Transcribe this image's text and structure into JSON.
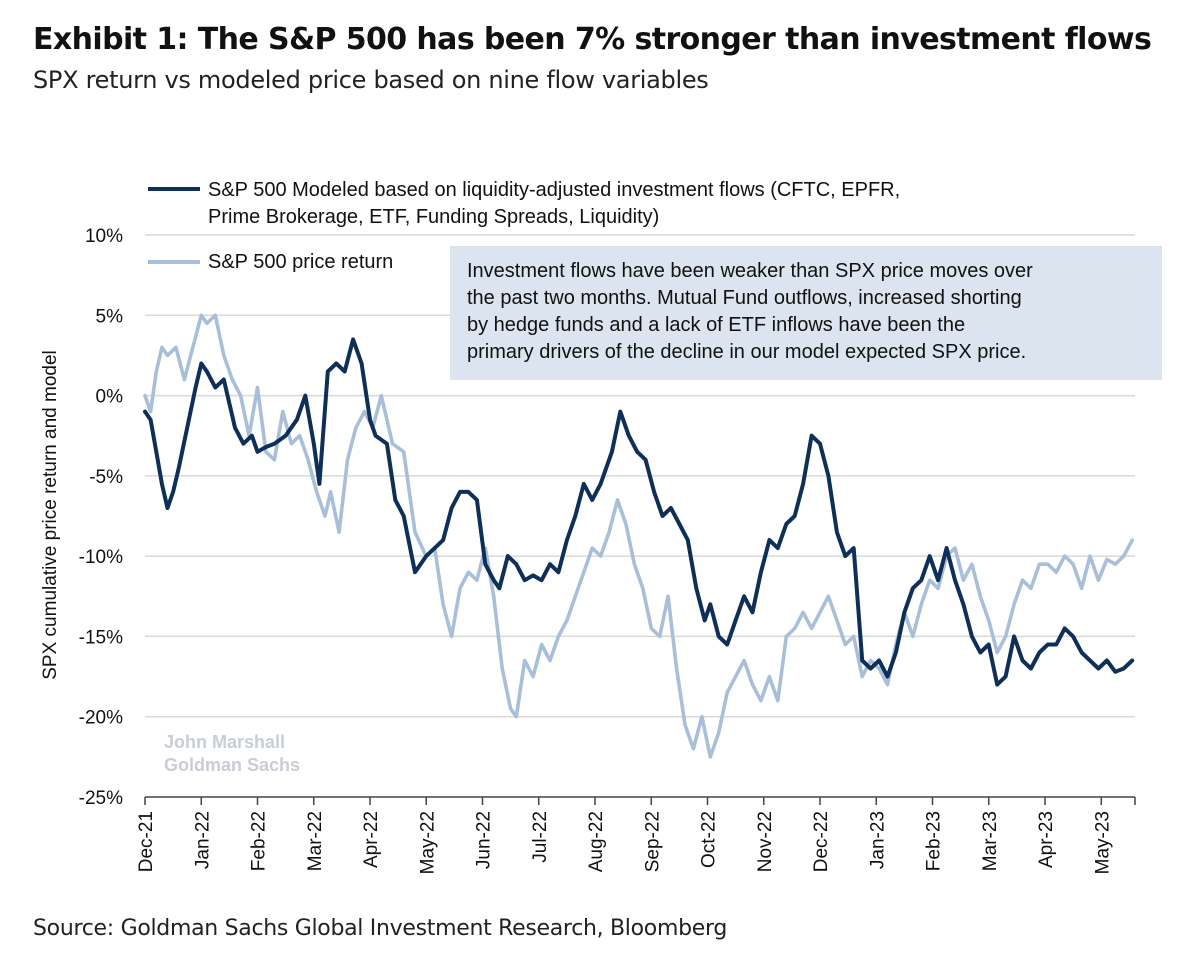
{
  "header": {
    "title": "Exhibit 1: The S&P 500 has been 7% stronger than investment flows",
    "subtitle": "SPX return vs modeled price based on nine flow variables"
  },
  "footer": {
    "source": "Source: Goldman Sachs Global Investment Research, Bloomberg"
  },
  "annotation": [
    "Investment flows have been weaker than SPX price moves over",
    "the past two months. Mutual Fund outflows, increased shorting",
    "by hedge funds and a lack of ETF inflows have been the",
    "primary drivers of the decline in our model expected SPX price."
  ],
  "watermark": [
    "John Marshall",
    "Goldman Sachs"
  ],
  "legend": {
    "modeled": [
      "S&P 500 Modeled based on liquidity-adjusted investment flows (CFTC, EPFR,",
      "Prime Brokerage, ETF, Funding Spreads, Liquidity)"
    ],
    "price": "S&P 500 price return"
  },
  "colors": {
    "modeled": "#0e2f57",
    "price": "#a9bfd9",
    "annotation_bg": "#dce4ef",
    "grid": "#d9d9d9"
  },
  "chart_data": {
    "type": "line",
    "ylabel": "SPX cumulative price return and model",
    "ylim": [
      -25,
      10
    ],
    "yticks": [
      10,
      5,
      0,
      -5,
      -10,
      -15,
      -20,
      -25
    ],
    "ytick_labels": [
      "10%",
      "5%",
      "0%",
      "-5%",
      "-10%",
      "-15%",
      "-20%",
      "-25%"
    ],
    "xticks": [
      "Dec-21",
      "Jan-22",
      "Feb-22",
      "Mar-22",
      "Apr-22",
      "May-22",
      "Jun-22",
      "Jul-22",
      "Aug-22",
      "Sep-22",
      "Oct-22",
      "Nov-22",
      "Dec-22",
      "Jan-23",
      "Feb-23",
      "Mar-23",
      "Apr-23",
      "May-23"
    ],
    "x_month_offsets": [
      0,
      1,
      2,
      3,
      4,
      5,
      6,
      7,
      8,
      9,
      10,
      11,
      12,
      13,
      14,
      15,
      16,
      17
    ],
    "x_range_months": [
      0,
      17.6
    ],
    "grid": true,
    "legend_position": "top-left",
    "series": [
      {
        "name": "S&P 500 Modeled based on liquidity-adjusted investment flows (CFTC, EPFR, Prime Brokerage, ETF, Funding Spreads, Liquidity)",
        "key": "modeled",
        "x": [
          0,
          0.1,
          0.2,
          0.3,
          0.4,
          0.5,
          0.6,
          0.75,
          0.9,
          1.0,
          1.1,
          1.25,
          1.4,
          1.5,
          1.6,
          1.75,
          1.9,
          2.0,
          2.15,
          2.3,
          2.5,
          2.7,
          2.85,
          3.0,
          3.1,
          3.25,
          3.4,
          3.55,
          3.7,
          3.85,
          4.0,
          4.1,
          4.3,
          4.45,
          4.6,
          4.8,
          5.0,
          5.15,
          5.3,
          5.45,
          5.6,
          5.75,
          5.9,
          6.05,
          6.2,
          6.3,
          6.45,
          6.6,
          6.75,
          6.9,
          7.05,
          7.2,
          7.35,
          7.5,
          7.65,
          7.8,
          7.95,
          8.1,
          8.3,
          8.45,
          8.6,
          8.75,
          8.9,
          9.05,
          9.2,
          9.35,
          9.5,
          9.65,
          9.8,
          9.95,
          10.05,
          10.2,
          10.35,
          10.5,
          10.65,
          10.8,
          10.95,
          11.1,
          11.25,
          11.4,
          11.55,
          11.7,
          11.85,
          12.0,
          12.15,
          12.3,
          12.45,
          12.6,
          12.75,
          12.9,
          13.05,
          13.2,
          13.35,
          13.5,
          13.65,
          13.8,
          13.95,
          14.1,
          14.25,
          14.4,
          14.55,
          14.7,
          14.85,
          15.0,
          15.15,
          15.3,
          15.45,
          15.6,
          15.75,
          15.9,
          16.05,
          16.2,
          16.35,
          16.5,
          16.65,
          16.8,
          16.95,
          17.1,
          17.25,
          17.4,
          17.55
        ],
        "y": [
          -1,
          -1.5,
          -3.5,
          -5.5,
          -7,
          -6,
          -4.5,
          -2,
          0.5,
          2,
          1.5,
          0.5,
          1,
          -0.5,
          -2,
          -3,
          -2.5,
          -3.5,
          -3.2,
          -3,
          -2.5,
          -1.5,
          0,
          -3,
          -5.5,
          1.5,
          2,
          1.5,
          3.5,
          2,
          -1.5,
          -2.5,
          -3,
          -6.5,
          -7.5,
          -11,
          -10,
          -9.5,
          -9,
          -7,
          -6,
          -6,
          -6.5,
          -10.5,
          -11.5,
          -12,
          -10,
          -10.5,
          -11.5,
          -11.2,
          -11.5,
          -10.5,
          -11,
          -9,
          -7.5,
          -5.5,
          -6.5,
          -5.5,
          -3.5,
          -1,
          -2.5,
          -3.5,
          -4,
          -6,
          -7.5,
          -7,
          -8,
          -9,
          -12,
          -14,
          -13,
          -15,
          -15.5,
          -14,
          -12.5,
          -13.5,
          -11,
          -9,
          -9.5,
          -8,
          -7.5,
          -5.5,
          -2.5,
          -3,
          -5,
          -8.5,
          -10,
          -9.5,
          -16.5,
          -17,
          -16.5,
          -17.5,
          -16,
          -13.5,
          -12,
          -11.5,
          -10,
          -11.5,
          -9.5,
          -11.5,
          -13,
          -15,
          -16,
          -15.5,
          -18,
          -17.5,
          -15,
          -16.5,
          -17,
          -16,
          -15.5,
          -15.5,
          -14.5,
          -15,
          -16,
          -16.5,
          -17,
          -16.5,
          -17.2,
          -17,
          -16.5
        ]
      },
      {
        "name": "S&P 500 price return",
        "key": "price",
        "x": [
          0,
          0.1,
          0.2,
          0.3,
          0.4,
          0.55,
          0.7,
          0.85,
          1.0,
          1.1,
          1.25,
          1.4,
          1.55,
          1.7,
          1.85,
          2.0,
          2.15,
          2.3,
          2.45,
          2.6,
          2.75,
          2.9,
          3.05,
          3.2,
          3.3,
          3.45,
          3.6,
          3.75,
          3.9,
          4.05,
          4.2,
          4.4,
          4.6,
          4.8,
          5.0,
          5.15,
          5.3,
          5.45,
          5.6,
          5.75,
          5.9,
          6.05,
          6.2,
          6.35,
          6.5,
          6.6,
          6.75,
          6.9,
          7.05,
          7.2,
          7.35,
          7.5,
          7.65,
          7.8,
          7.95,
          8.1,
          8.25,
          8.4,
          8.55,
          8.7,
          8.85,
          9.0,
          9.15,
          9.3,
          9.45,
          9.6,
          9.75,
          9.9,
          10.05,
          10.2,
          10.35,
          10.5,
          10.65,
          10.8,
          10.95,
          11.1,
          11.25,
          11.4,
          11.55,
          11.7,
          11.85,
          12.0,
          12.15,
          12.3,
          12.45,
          12.6,
          12.75,
          12.9,
          13.05,
          13.2,
          13.35,
          13.5,
          13.65,
          13.8,
          13.95,
          14.1,
          14.25,
          14.4,
          14.55,
          14.7,
          14.85,
          15.0,
          15.15,
          15.3,
          15.45,
          15.6,
          15.75,
          15.9,
          16.05,
          16.2,
          16.35,
          16.5,
          16.65,
          16.8,
          16.95,
          17.1,
          17.25,
          17.4,
          17.55
        ],
        "y": [
          0,
          -1,
          1.5,
          3,
          2.5,
          3,
          1,
          3,
          5,
          4.5,
          5,
          2.5,
          1,
          0,
          -2.5,
          0.5,
          -3.5,
          -4,
          -1,
          -3,
          -2.5,
          -4,
          -6,
          -7.5,
          -6,
          -8.5,
          -4,
          -2,
          -1,
          -2,
          0,
          -3,
          -3.5,
          -8.5,
          -10,
          -9.5,
          -13,
          -15,
          -12,
          -11,
          -11.5,
          -9.5,
          -12.5,
          -17,
          -19.5,
          -20,
          -16.5,
          -17.5,
          -15.5,
          -16.5,
          -15,
          -14,
          -12.5,
          -11,
          -9.5,
          -10,
          -8.5,
          -6.5,
          -8,
          -10.5,
          -12,
          -14.5,
          -15,
          -12.5,
          -17,
          -20.5,
          -22,
          -20,
          -22.5,
          -21,
          -18.5,
          -17.5,
          -16.5,
          -18,
          -19,
          -17.5,
          -19,
          -15,
          -14.5,
          -13.5,
          -14.5,
          -13.5,
          -12.5,
          -14,
          -15.5,
          -15,
          -17.5,
          -16.5,
          -17,
          -18,
          -15.5,
          -13.5,
          -15,
          -13,
          -11.5,
          -12,
          -10,
          -9.5,
          -11.5,
          -10.5,
          -12.5,
          -14,
          -16,
          -15,
          -13,
          -11.5,
          -12,
          -10.5,
          -10.5,
          -11,
          -10,
          -10.5,
          -12,
          -10,
          -11.5,
          -10.2,
          -10.5,
          -10,
          -9
        ]
      }
    ]
  }
}
